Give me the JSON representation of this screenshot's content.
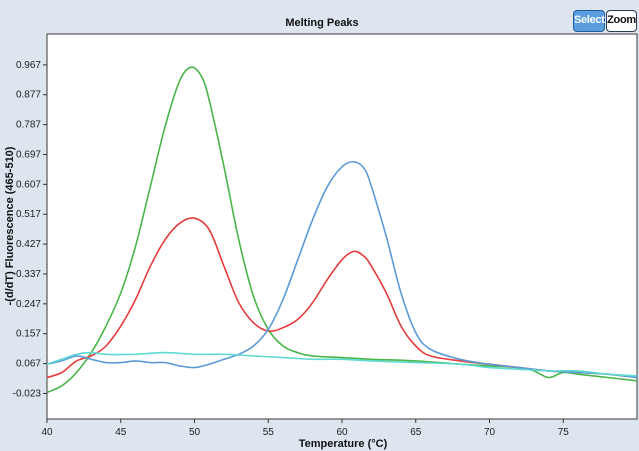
{
  "toolbar": {
    "select_label": "Select",
    "zoom_label": "Zoom"
  },
  "chart_data": {
    "type": "line",
    "title": "Melting Peaks",
    "xlabel": "Temperature (°C)",
    "ylabel": "-(d/dT) Fluorescence (465-510)",
    "xlim": [
      40,
      80
    ],
    "ylim": [
      -0.1,
      1.06
    ],
    "x_ticks": [
      "40",
      "45",
      "50",
      "55",
      "60",
      "65",
      "70",
      "75"
    ],
    "y_ticks": [
      "0.967",
      "0.877",
      "0.787",
      "0.697",
      "0.607",
      "0.517",
      "0.427",
      "0.337",
      "0.247",
      "0.157",
      "0.067",
      "-0.023"
    ],
    "grid": false,
    "series": [
      {
        "color": "#49b649",
        "x": [
          40,
          41,
          42,
          43,
          44,
          45,
          46,
          47,
          48,
          49,
          49.8,
          50.5,
          51,
          52,
          53,
          54,
          55,
          56,
          57,
          58,
          60,
          62,
          65,
          68,
          70,
          72,
          73,
          74,
          75,
          76,
          78,
          80
        ],
        "y": [
          -0.02,
          0.0,
          0.04,
          0.1,
          0.18,
          0.28,
          0.42,
          0.6,
          0.78,
          0.92,
          0.96,
          0.93,
          0.86,
          0.66,
          0.44,
          0.27,
          0.17,
          0.12,
          0.1,
          0.09,
          0.085,
          0.08,
          0.075,
          0.065,
          0.06,
          0.055,
          0.045,
          0.025,
          0.04,
          0.035,
          0.025,
          0.015
        ]
      },
      {
        "color": "#e63b3b",
        "x": [
          40,
          41,
          42,
          43,
          44,
          45,
          46,
          47,
          48,
          49,
          50,
          51,
          52,
          53,
          54,
          55,
          56,
          57,
          58,
          59,
          60,
          60.8,
          61.5,
          62,
          63,
          64,
          65,
          66,
          68,
          70,
          72,
          74,
          76,
          78,
          80
        ],
        "y": [
          0.025,
          0.04,
          0.075,
          0.09,
          0.12,
          0.18,
          0.26,
          0.36,
          0.44,
          0.49,
          0.505,
          0.47,
          0.36,
          0.25,
          0.19,
          0.165,
          0.175,
          0.2,
          0.25,
          0.32,
          0.38,
          0.405,
          0.39,
          0.36,
          0.28,
          0.18,
          0.12,
          0.09,
          0.075,
          0.065,
          0.055,
          0.045,
          0.04,
          0.035,
          0.025
        ]
      },
      {
        "color": "#5b9bd8",
        "x": [
          40,
          41,
          42,
          43,
          44,
          45,
          46,
          47,
          48,
          49,
          50,
          51,
          52,
          53,
          54,
          55,
          56,
          57,
          58,
          59,
          60,
          60.8,
          61.5,
          62,
          63,
          64,
          65,
          66,
          68,
          70,
          72,
          74,
          76,
          78,
          80
        ],
        "y": [
          0.065,
          0.075,
          0.09,
          0.08,
          0.07,
          0.07,
          0.075,
          0.07,
          0.07,
          0.06,
          0.055,
          0.065,
          0.08,
          0.095,
          0.12,
          0.17,
          0.26,
          0.38,
          0.5,
          0.6,
          0.66,
          0.675,
          0.655,
          0.6,
          0.45,
          0.28,
          0.16,
          0.11,
          0.08,
          0.065,
          0.055,
          0.045,
          0.04,
          0.035,
          0.025
        ]
      },
      {
        "color": "#5fd9d2",
        "x": [
          40,
          41,
          42,
          43,
          44,
          46,
          48,
          50,
          52,
          54,
          56,
          58,
          60,
          62,
          65,
          68,
          70,
          72,
          74,
          76,
          78,
          80
        ],
        "y": [
          0.065,
          0.08,
          0.095,
          0.1,
          0.095,
          0.095,
          0.1,
          0.095,
          0.095,
          0.09,
          0.085,
          0.08,
          0.08,
          0.075,
          0.07,
          0.065,
          0.055,
          0.05,
          0.045,
          0.045,
          0.035,
          0.03
        ]
      }
    ]
  }
}
